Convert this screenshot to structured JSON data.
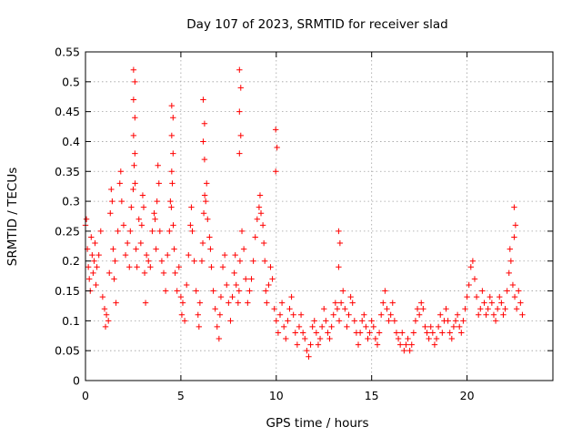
{
  "chart_data": {
    "type": "scatter",
    "title": "Day 107 of 2023, SRMTID for receiver slad",
    "xlabel": "GPS time / hours",
    "ylabel": "SRMTID / TECUs",
    "xlim": [
      0,
      24.5
    ],
    "ylim": [
      0,
      0.55
    ],
    "xticks": [
      0,
      5,
      10,
      15,
      20
    ],
    "xtick_labels": [
      "0",
      "5",
      "10",
      "15",
      "20"
    ],
    "yticks": [
      0,
      0.05,
      0.1,
      0.15,
      0.2,
      0.25,
      0.3,
      0.35,
      0.4,
      0.45,
      0.5,
      0.55
    ],
    "ytick_labels": [
      "0",
      "0.05",
      "0.1",
      "0.15",
      "0.2",
      "0.25",
      "0.3",
      "0.35",
      "0.4",
      "0.45",
      "0.5",
      "0.55"
    ],
    "grid": true,
    "marker": "+",
    "color": "#ff0000",
    "series": [
      {
        "name": "SRMTID",
        "points": [
          [
            0.0,
            0.26
          ],
          [
            0.05,
            0.27
          ],
          [
            0.1,
            0.22
          ],
          [
            0.15,
            0.19
          ],
          [
            0.2,
            0.17
          ],
          [
            0.25,
            0.15
          ],
          [
            0.3,
            0.24
          ],
          [
            0.35,
            0.21
          ],
          [
            0.4,
            0.18
          ],
          [
            0.45,
            0.2
          ],
          [
            0.5,
            0.23
          ],
          [
            0.55,
            0.16
          ],
          [
            0.6,
            0.19
          ],
          [
            0.7,
            0.21
          ],
          [
            0.8,
            0.25
          ],
          [
            0.9,
            0.14
          ],
          [
            1.0,
            0.12
          ],
          [
            1.05,
            0.09
          ],
          [
            1.1,
            0.11
          ],
          [
            1.2,
            0.1
          ],
          [
            1.25,
            0.18
          ],
          [
            1.3,
            0.28
          ],
          [
            1.35,
            0.32
          ],
          [
            1.4,
            0.3
          ],
          [
            1.45,
            0.22
          ],
          [
            1.5,
            0.17
          ],
          [
            1.55,
            0.2
          ],
          [
            1.6,
            0.13
          ],
          [
            1.7,
            0.25
          ],
          [
            1.8,
            0.33
          ],
          [
            1.85,
            0.35
          ],
          [
            1.9,
            0.3
          ],
          [
            2.0,
            0.26
          ],
          [
            2.1,
            0.21
          ],
          [
            2.2,
            0.23
          ],
          [
            2.3,
            0.19
          ],
          [
            2.35,
            0.25
          ],
          [
            2.4,
            0.29
          ],
          [
            2.5,
            0.32
          ],
          [
            2.55,
            0.36
          ],
          [
            2.6,
            0.33
          ],
          [
            2.65,
            0.22
          ],
          [
            2.7,
            0.19
          ],
          [
            2.8,
            0.27
          ],
          [
            2.9,
            0.23
          ],
          [
            2.95,
            0.26
          ],
          [
            3.0,
            0.31
          ],
          [
            3.05,
            0.29
          ],
          [
            3.1,
            0.18
          ],
          [
            3.15,
            0.13
          ],
          [
            3.2,
            0.21
          ],
          [
            3.3,
            0.2
          ],
          [
            3.4,
            0.19
          ],
          [
            3.5,
            0.25
          ],
          [
            3.6,
            0.28
          ],
          [
            3.65,
            0.27
          ],
          [
            3.7,
            0.22
          ],
          [
            3.75,
            0.3
          ],
          [
            3.8,
            0.36
          ],
          [
            3.85,
            0.33
          ],
          [
            3.9,
            0.25
          ],
          [
            4.0,
            0.2
          ],
          [
            4.1,
            0.18
          ],
          [
            4.2,
            0.15
          ],
          [
            4.3,
            0.21
          ],
          [
            4.4,
            0.25
          ],
          [
            4.45,
            0.3
          ],
          [
            4.5,
            0.29
          ],
          [
            4.55,
            0.33
          ],
          [
            4.6,
            0.26
          ],
          [
            4.65,
            0.22
          ],
          [
            4.7,
            0.18
          ],
          [
            4.8,
            0.15
          ],
          [
            4.9,
            0.19
          ],
          [
            5.0,
            0.14
          ],
          [
            5.05,
            0.11
          ],
          [
            5.1,
            0.13
          ],
          [
            5.2,
            0.1
          ],
          [
            5.3,
            0.16
          ],
          [
            5.4,
            0.21
          ],
          [
            5.5,
            0.26
          ],
          [
            5.55,
            0.29
          ],
          [
            5.6,
            0.25
          ],
          [
            5.7,
            0.2
          ],
          [
            5.8,
            0.15
          ],
          [
            5.9,
            0.11
          ],
          [
            5.95,
            0.09
          ],
          [
            6.0,
            0.13
          ],
          [
            6.1,
            0.2
          ],
          [
            6.15,
            0.23
          ],
          [
            6.2,
            0.28
          ],
          [
            6.25,
            0.31
          ],
          [
            6.3,
            0.3
          ],
          [
            6.35,
            0.33
          ],
          [
            6.4,
            0.27
          ],
          [
            6.5,
            0.24
          ],
          [
            6.55,
            0.22
          ],
          [
            6.6,
            0.19
          ],
          [
            6.7,
            0.15
          ],
          [
            6.8,
            0.12
          ],
          [
            6.9,
            0.09
          ],
          [
            7.0,
            0.07
          ],
          [
            7.05,
            0.11
          ],
          [
            7.1,
            0.14
          ],
          [
            7.2,
            0.19
          ],
          [
            7.3,
            0.21
          ],
          [
            7.4,
            0.16
          ],
          [
            7.5,
            0.13
          ],
          [
            7.6,
            0.1
          ],
          [
            7.7,
            0.14
          ],
          [
            7.8,
            0.18
          ],
          [
            7.85,
            0.21
          ],
          [
            7.9,
            0.16
          ],
          [
            8.0,
            0.13
          ],
          [
            8.05,
            0.15
          ],
          [
            8.1,
            0.2
          ],
          [
            8.2,
            0.25
          ],
          [
            8.3,
            0.22
          ],
          [
            8.4,
            0.17
          ],
          [
            8.5,
            0.13
          ],
          [
            8.6,
            0.15
          ],
          [
            8.7,
            0.17
          ],
          [
            8.8,
            0.2
          ],
          [
            8.9,
            0.24
          ],
          [
            9.0,
            0.27
          ],
          [
            9.1,
            0.29
          ],
          [
            9.15,
            0.31
          ],
          [
            9.2,
            0.28
          ],
          [
            9.3,
            0.26
          ],
          [
            9.35,
            0.23
          ],
          [
            9.4,
            0.2
          ],
          [
            9.45,
            0.15
          ],
          [
            9.5,
            0.13
          ],
          [
            9.6,
            0.16
          ],
          [
            9.7,
            0.19
          ],
          [
            9.8,
            0.17
          ],
          [
            9.9,
            0.12
          ],
          [
            10.0,
            0.1
          ],
          [
            10.1,
            0.08
          ],
          [
            10.2,
            0.11
          ],
          [
            10.3,
            0.13
          ],
          [
            10.4,
            0.09
          ],
          [
            10.5,
            0.07
          ],
          [
            10.6,
            0.1
          ],
          [
            10.7,
            0.12
          ],
          [
            10.8,
            0.14
          ],
          [
            10.9,
            0.11
          ],
          [
            11.0,
            0.08
          ],
          [
            11.1,
            0.06
          ],
          [
            11.2,
            0.09
          ],
          [
            11.3,
            0.11
          ],
          [
            11.4,
            0.08
          ],
          [
            11.5,
            0.07
          ],
          [
            11.6,
            0.05
          ],
          [
            11.7,
            0.04
          ],
          [
            11.8,
            0.06
          ],
          [
            11.9,
            0.09
          ],
          [
            12.0,
            0.1
          ],
          [
            12.1,
            0.08
          ],
          [
            12.2,
            0.06
          ],
          [
            12.3,
            0.07
          ],
          [
            12.4,
            0.09
          ],
          [
            12.5,
            0.12
          ],
          [
            12.6,
            0.1
          ],
          [
            12.7,
            0.08
          ],
          [
            12.8,
            0.07
          ],
          [
            12.9,
            0.09
          ],
          [
            13.0,
            0.11
          ],
          [
            13.1,
            0.13
          ],
          [
            13.2,
            0.12
          ],
          [
            13.3,
            0.1
          ],
          [
            13.4,
            0.13
          ],
          [
            13.5,
            0.15
          ],
          [
            13.6,
            0.12
          ],
          [
            13.7,
            0.09
          ],
          [
            13.8,
            0.11
          ],
          [
            13.9,
            0.14
          ],
          [
            14.0,
            0.13
          ],
          [
            14.1,
            0.1
          ],
          [
            14.2,
            0.08
          ],
          [
            14.3,
            0.06
          ],
          [
            14.4,
            0.08
          ],
          [
            14.5,
            0.1
          ],
          [
            14.6,
            0.11
          ],
          [
            14.7,
            0.09
          ],
          [
            14.8,
            0.07
          ],
          [
            14.9,
            0.08
          ],
          [
            15.0,
            0.1
          ],
          [
            15.1,
            0.09
          ],
          [
            15.2,
            0.07
          ],
          [
            15.3,
            0.06
          ],
          [
            15.4,
            0.08
          ],
          [
            15.5,
            0.11
          ],
          [
            15.6,
            0.13
          ],
          [
            15.7,
            0.15
          ],
          [
            15.8,
            0.12
          ],
          [
            15.9,
            0.1
          ],
          [
            16.0,
            0.11
          ],
          [
            16.1,
            0.13
          ],
          [
            16.2,
            0.1
          ],
          [
            16.3,
            0.08
          ],
          [
            16.4,
            0.07
          ],
          [
            16.5,
            0.06
          ],
          [
            16.6,
            0.08
          ],
          [
            16.7,
            0.05
          ],
          [
            16.8,
            0.06
          ],
          [
            16.9,
            0.07
          ],
          [
            17.0,
            0.05
          ],
          [
            17.1,
            0.06
          ],
          [
            17.2,
            0.08
          ],
          [
            17.3,
            0.1
          ],
          [
            17.4,
            0.12
          ],
          [
            17.5,
            0.11
          ],
          [
            17.6,
            0.13
          ],
          [
            17.7,
            0.12
          ],
          [
            17.8,
            0.09
          ],
          [
            17.9,
            0.08
          ],
          [
            18.0,
            0.07
          ],
          [
            18.1,
            0.09
          ],
          [
            18.2,
            0.08
          ],
          [
            18.3,
            0.06
          ],
          [
            18.4,
            0.07
          ],
          [
            18.5,
            0.09
          ],
          [
            18.6,
            0.11
          ],
          [
            18.7,
            0.08
          ],
          [
            18.8,
            0.1
          ],
          [
            18.9,
            0.12
          ],
          [
            19.0,
            0.1
          ],
          [
            19.1,
            0.08
          ],
          [
            19.2,
            0.07
          ],
          [
            19.3,
            0.09
          ],
          [
            19.4,
            0.1
          ],
          [
            19.5,
            0.11
          ],
          [
            19.6,
            0.09
          ],
          [
            19.7,
            0.08
          ],
          [
            19.8,
            0.1
          ],
          [
            19.9,
            0.12
          ],
          [
            20.0,
            0.14
          ],
          [
            20.1,
            0.16
          ],
          [
            20.2,
            0.19
          ],
          [
            20.3,
            0.2
          ],
          [
            20.4,
            0.17
          ],
          [
            20.5,
            0.14
          ],
          [
            20.6,
            0.11
          ],
          [
            20.7,
            0.12
          ],
          [
            20.8,
            0.15
          ],
          [
            20.9,
            0.13
          ],
          [
            21.0,
            0.11
          ],
          [
            21.1,
            0.12
          ],
          [
            21.2,
            0.14
          ],
          [
            21.3,
            0.13
          ],
          [
            21.4,
            0.11
          ],
          [
            21.5,
            0.1
          ],
          [
            21.6,
            0.12
          ],
          [
            21.7,
            0.14
          ],
          [
            21.8,
            0.13
          ],
          [
            21.9,
            0.11
          ],
          [
            22.0,
            0.12
          ],
          [
            22.1,
            0.15
          ],
          [
            22.2,
            0.18
          ],
          [
            22.25,
            0.22
          ],
          [
            22.3,
            0.2
          ],
          [
            22.4,
            0.16
          ],
          [
            22.5,
            0.14
          ],
          [
            22.6,
            0.12
          ],
          [
            22.7,
            0.15
          ],
          [
            22.8,
            0.13
          ],
          [
            22.9,
            0.11
          ]
        ]
      }
    ],
    "spikes": [
      {
        "x": 2.55,
        "values": [
          0.52,
          0.5,
          0.47,
          0.44,
          0.41,
          0.38
        ]
      },
      {
        "x": 4.55,
        "values": [
          0.46,
          0.44,
          0.41,
          0.38,
          0.35
        ]
      },
      {
        "x": 6.2,
        "values": [
          0.47,
          0.43,
          0.4,
          0.37
        ]
      },
      {
        "x": 8.1,
        "values": [
          0.52,
          0.49,
          0.45,
          0.41,
          0.38
        ]
      },
      {
        "x": 10.0,
        "values": [
          0.42,
          0.39,
          0.35
        ]
      },
      {
        "x": 13.3,
        "values": [
          0.25,
          0.23,
          0.19
        ]
      },
      {
        "x": 22.5,
        "values": [
          0.29,
          0.26,
          0.24
        ]
      }
    ]
  }
}
